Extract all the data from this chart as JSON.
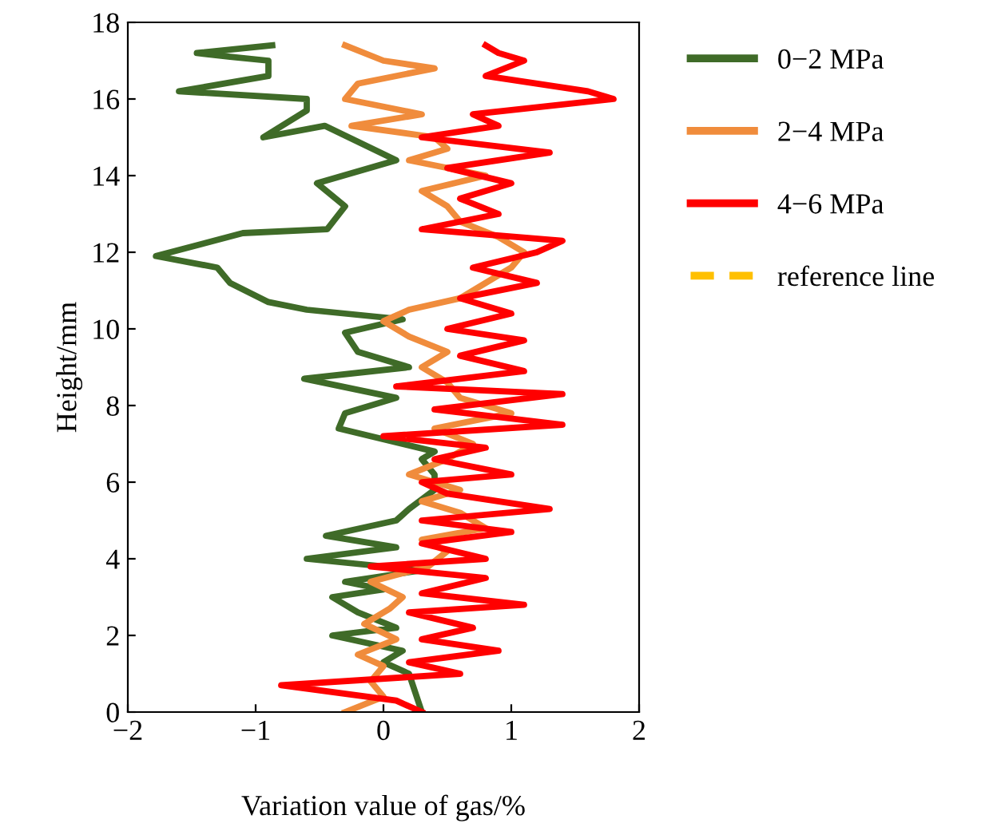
{
  "chart_data": {
    "type": "line",
    "xlabel": "Variation value of gas/%",
    "ylabel": "Height/mm",
    "xlim": [
      -2,
      2
    ],
    "xticks": [
      {
        "value": -2,
        "label": "−2"
      },
      {
        "value": -1,
        "label": "−1"
      },
      0,
      1,
      2
    ],
    "ylim": [
      0,
      18
    ],
    "yticks": [
      0,
      2,
      4,
      6,
      8,
      10,
      12,
      14,
      16,
      18
    ],
    "grid": false,
    "legend": "right",
    "line_style": "solid",
    "marker": "none",
    "series": [
      {
        "name": "0−2 MPa",
        "color": "#3f6b28",
        "x": [
          0.3,
          0.25,
          0.2,
          0.0,
          0.15,
          -0.4,
          0.1,
          -0.2,
          -0.4,
          0.0,
          -0.3,
          0.3,
          -0.6,
          0.1,
          -0.45,
          0.1,
          0.2,
          0.4,
          0.4,
          0.3,
          0.4,
          -0.35,
          -0.3,
          0.1,
          -0.62,
          0.2,
          -0.2,
          -0.3,
          0.15,
          -0.6,
          -0.9,
          -1.2,
          -1.3,
          -1.78,
          -1.1,
          -0.44,
          -0.3,
          -0.52,
          0.1,
          -0.46,
          -0.94,
          -0.6,
          -0.6,
          -1.6,
          -0.9,
          -0.9,
          -1.2,
          -1.46,
          -0.87
        ],
        "values": [
          0,
          0.5,
          1.0,
          1.3,
          1.6,
          2.0,
          2.2,
          2.6,
          3.0,
          3.2,
          3.4,
          3.7,
          4.0,
          4.3,
          4.6,
          5.0,
          5.3,
          5.8,
          6.2,
          6.6,
          6.8,
          7.4,
          7.8,
          8.2,
          8.7,
          9.0,
          9.4,
          9.9,
          10.25,
          10.5,
          10.7,
          11.2,
          11.6,
          11.9,
          12.5,
          12.6,
          13.2,
          13.8,
          14.4,
          15.3,
          15.0,
          15.7,
          16.0,
          16.2,
          16.6,
          17.0,
          17.1,
          17.2,
          17.4
        ]
      },
      {
        "name": "2−4 MPa",
        "color": "#f08c3c",
        "x": [
          -0.3,
          0.0,
          -0.1,
          0.0,
          -0.2,
          0.1,
          -0.15,
          0.05,
          0.15,
          -0.1,
          0.35,
          0.5,
          0.3,
          0.8,
          0.6,
          0.3,
          0.6,
          0.2,
          0.5,
          0.7,
          0.4,
          1.0,
          0.6,
          0.5,
          0.3,
          0.5,
          0.2,
          0.0,
          0.2,
          0.6,
          0.8,
          1.0,
          1.1,
          0.9,
          0.6,
          0.5,
          0.3,
          0.8,
          0.2,
          0.5,
          0.4,
          -0.25,
          0.3,
          -0.3,
          -0.2,
          0.4,
          0.0,
          -0.3
        ],
        "values": [
          0,
          0.4,
          0.8,
          1.2,
          1.5,
          1.9,
          2.3,
          2.7,
          3.0,
          3.4,
          3.8,
          4.2,
          4.5,
          4.8,
          5.2,
          5.5,
          5.8,
          6.2,
          6.6,
          7.0,
          7.4,
          7.8,
          8.2,
          8.6,
          9.0,
          9.4,
          9.8,
          10.2,
          10.5,
          10.8,
          11.2,
          11.6,
          12.0,
          12.4,
          12.8,
          13.2,
          13.6,
          14.0,
          14.4,
          14.7,
          15.0,
          15.3,
          15.6,
          16.0,
          16.4,
          16.8,
          17.0,
          17.4
        ]
      },
      {
        "name": "4−6 MPa",
        "color": "#ff0000",
        "x": [
          0.3,
          0.1,
          -0.8,
          0.6,
          0.2,
          0.9,
          0.3,
          0.7,
          0.2,
          1.1,
          0.3,
          0.8,
          -0.1,
          0.8,
          0.3,
          1.0,
          0.3,
          1.3,
          0.5,
          0.3,
          1.0,
          0.4,
          0.8,
          0.0,
          1.4,
          0.4,
          1.4,
          0.1,
          1.1,
          0.6,
          1.1,
          0.5,
          1.0,
          0.6,
          1.2,
          0.7,
          1.2,
          1.4,
          0.3,
          0.9,
          0.6,
          1.0,
          0.5,
          1.3,
          0.3,
          0.9,
          0.7,
          1.8,
          1.6,
          0.8,
          1.1,
          0.9,
          0.8
        ],
        "values": [
          0,
          0.3,
          0.7,
          1.0,
          1.3,
          1.6,
          1.9,
          2.2,
          2.6,
          2.8,
          3.1,
          3.5,
          3.8,
          4.0,
          4.4,
          4.7,
          5.0,
          5.3,
          5.7,
          6.0,
          6.2,
          6.6,
          6.9,
          7.2,
          7.5,
          7.9,
          8.3,
          8.5,
          8.9,
          9.3,
          9.7,
          10.0,
          10.4,
          10.8,
          11.2,
          11.6,
          12.0,
          12.3,
          12.6,
          13.0,
          13.4,
          13.8,
          14.2,
          14.6,
          15.0,
          15.3,
          15.6,
          16.0,
          16.2,
          16.6,
          17.0,
          17.2,
          17.4
        ]
      },
      {
        "name": "reference line",
        "color": "#ffc000",
        "line_style": "dashed",
        "x": [
          null,
          null
        ],
        "values": [
          null,
          null
        ]
      }
    ]
  }
}
